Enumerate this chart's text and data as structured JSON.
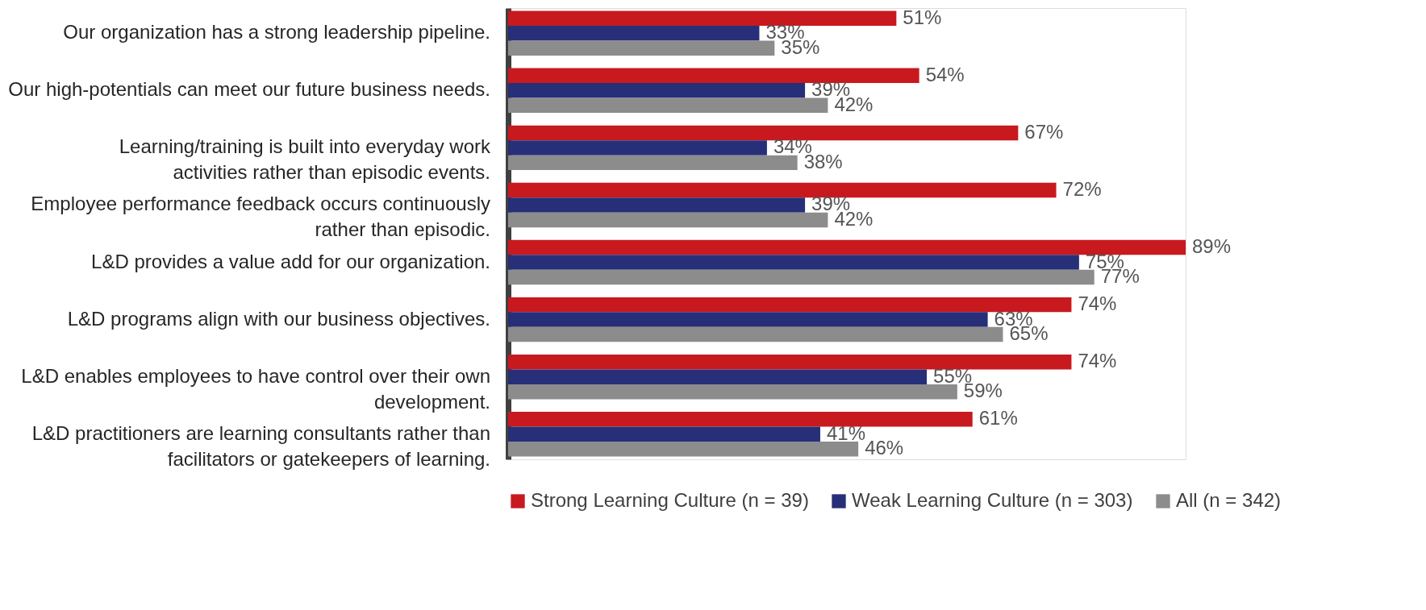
{
  "chart_data": {
    "type": "bar",
    "orientation": "horizontal",
    "legend": "bottom",
    "categories": [
      "Our organization has a strong leadership pipeline.",
      "Our high-potentials can meet our future business needs.",
      "Learning/training is built into everyday work activities rather than episodic events.",
      "Employee performance feedback occurs continuously rather than episodic.",
      "L&D provides a value add for our organization.",
      "L&D programs align with our business objectives.",
      "L&D enables employees to have control over their own development.",
      "L&D practitioners are learning consultants rather than facilitators or gatekeepers of learning."
    ],
    "series": [
      {
        "name": "Strong Learning Culture (n = 39)",
        "color": "#c8191f",
        "values": [
          51,
          54,
          67,
          72,
          89,
          74,
          74,
          61
        ],
        "value_labels": [
          "51%",
          "54%",
          "67%",
          "72%",
          "89%",
          "74%",
          "74%",
          "61%"
        ]
      },
      {
        "name": "Weak Learning Culture (n = 303)",
        "color": "#272f78",
        "values": [
          33,
          39,
          34,
          39,
          75,
          63,
          55,
          41
        ],
        "value_labels": [
          "33%",
          "39%",
          "34%",
          "39%",
          "75%",
          "63%",
          "55%",
          "41%"
        ]
      },
      {
        "name": "All (n = 342)",
        "color": "#8c8c8c",
        "values": [
          35,
          42,
          38,
          42,
          77,
          65,
          59,
          46
        ],
        "value_labels": [
          "35%",
          "42%",
          "38%",
          "42%",
          "77%",
          "65%",
          "59%",
          "46%"
        ]
      }
    ]
  }
}
